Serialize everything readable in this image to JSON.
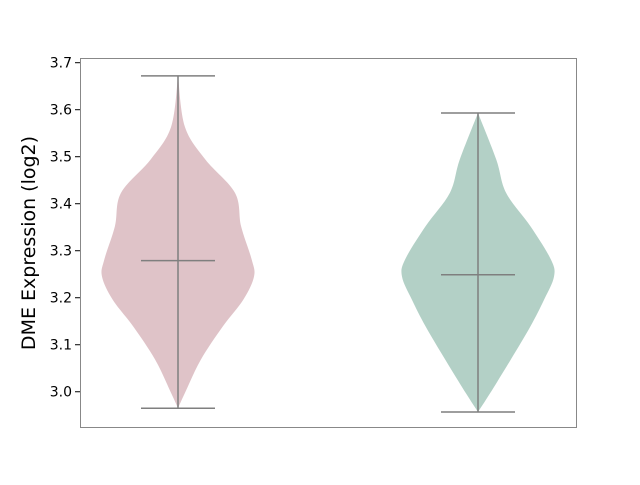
{
  "chart_data": {
    "type": "violin",
    "title": "",
    "xlabel": "",
    "ylabel": "DME Expression (log2)",
    "ylim": [
      2.925,
      3.71
    ],
    "yticks": [
      "3.0",
      "3.1",
      "3.2",
      "3.3",
      "3.4",
      "3.5",
      "3.6",
      "3.7"
    ],
    "grid": false,
    "line_color": "#7f7f7f",
    "series": [
      {
        "color": "#dfc3c8",
        "min": 2.965,
        "max": 3.672,
        "median": 3.279,
        "density_y": [
          3.672,
          3.564,
          3.494,
          3.423,
          3.352,
          3.281,
          3.245,
          3.196,
          3.139,
          3.068,
          2.997,
          2.965
        ],
        "density": [
          0.0,
          0.09,
          0.36,
          0.75,
          0.83,
          0.97,
          1.0,
          0.86,
          0.59,
          0.3,
          0.09,
          0.0
        ]
      },
      {
        "color": "#b3d0c6",
        "min": 2.957,
        "max": 3.593,
        "median": 3.249,
        "density_y": [
          3.593,
          3.494,
          3.423,
          3.352,
          3.281,
          3.245,
          3.196,
          3.139,
          3.068,
          2.997,
          2.957
        ],
        "density": [
          0.0,
          0.24,
          0.37,
          0.69,
          0.96,
          1.0,
          0.87,
          0.69,
          0.43,
          0.16,
          0.0
        ]
      }
    ]
  }
}
